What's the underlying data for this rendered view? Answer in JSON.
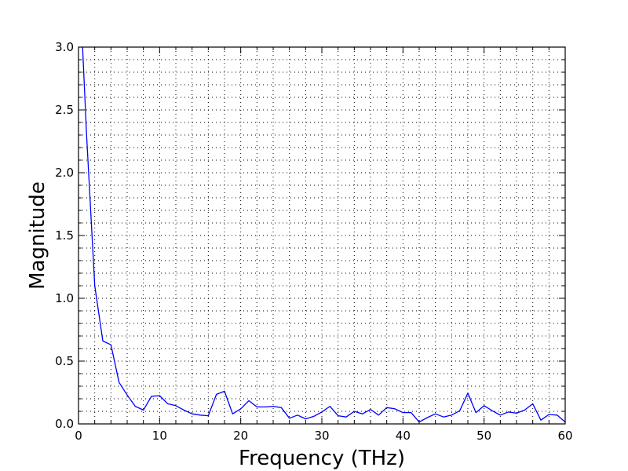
{
  "chart_data": {
    "type": "line",
    "title": "",
    "xlabel": "Frequency (THz)",
    "ylabel": "Magnitude",
    "xlim": [
      0,
      60
    ],
    "ylim": [
      0,
      3.0
    ],
    "xticks": [
      0,
      10,
      20,
      30,
      40,
      50,
      60
    ],
    "xtick_labels": [
      "0",
      "10",
      "20",
      "30",
      "40",
      "50",
      "60"
    ],
    "yticks": [
      0,
      0.5,
      1.0,
      1.5,
      2.0,
      2.5,
      3.0
    ],
    "ytick_labels": [
      "0.0",
      "0.5",
      "1.0",
      "1.5",
      "2.0",
      "2.5",
      "3.0"
    ],
    "grid": true,
    "grid_style": "dotted",
    "line_color": "#0000ff",
    "series": [
      {
        "x": [
          0.5,
          1,
          2,
          3,
          4,
          5,
          6,
          7,
          8,
          9,
          10,
          11,
          12,
          13,
          14,
          15,
          16,
          17,
          18,
          19,
          20,
          21,
          22,
          23,
          24,
          25,
          26,
          27,
          28,
          29,
          30,
          31,
          32,
          33,
          34,
          35,
          36,
          37,
          38,
          39,
          40,
          41,
          42,
          43,
          44,
          45,
          46,
          47,
          48,
          49,
          50,
          51,
          52,
          53,
          54,
          55,
          56,
          57,
          58,
          59,
          60
        ],
        "y": [
          3.0,
          2.3,
          1.1,
          0.66,
          0.63,
          0.33,
          0.23,
          0.14,
          0.11,
          0.22,
          0.225,
          0.16,
          0.145,
          0.11,
          0.08,
          0.07,
          0.065,
          0.235,
          0.26,
          0.08,
          0.12,
          0.185,
          0.135,
          0.135,
          0.14,
          0.13,
          0.045,
          0.07,
          0.04,
          0.06,
          0.095,
          0.14,
          0.065,
          0.055,
          0.1,
          0.08,
          0.115,
          0.07,
          0.13,
          0.12,
          0.09,
          0.09,
          0.015,
          0.05,
          0.08,
          0.055,
          0.07,
          0.105,
          0.245,
          0.09,
          0.145,
          0.105,
          0.07,
          0.095,
          0.085,
          0.11,
          0.16,
          0.03,
          0.075,
          0.07,
          0.015
        ]
      }
    ]
  }
}
